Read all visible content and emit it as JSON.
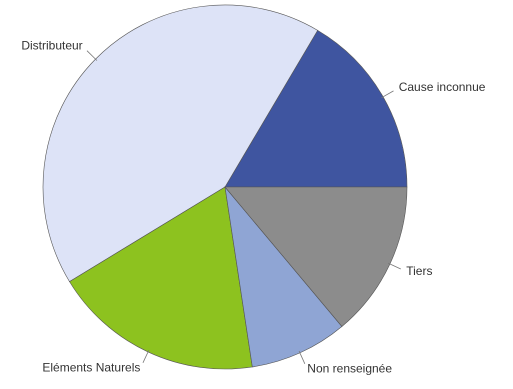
{
  "chart_data": {
    "type": "pie",
    "categories": [
      "Cause inconnue",
      "Distributeur",
      "Eléments Naturels",
      "Non renseignée",
      "Tiers"
    ],
    "values": [
      16.5,
      42.2,
      18.7,
      8.7,
      13.9
    ],
    "colors": [
      "#3f55a0",
      "#dde3f7",
      "#8dc21f",
      "#8fa5d4",
      "#8c8c8c"
    ]
  }
}
